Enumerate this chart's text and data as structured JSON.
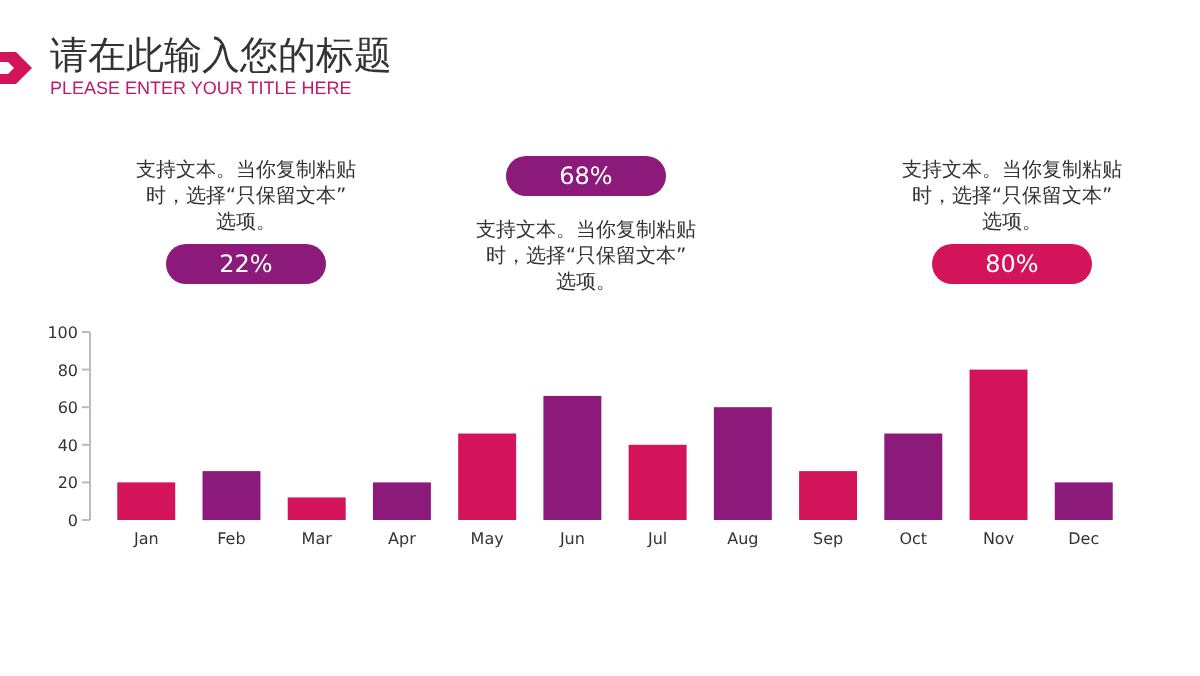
{
  "chart_data": {
    "type": "bar",
    "title": "请在此输入您的标题",
    "subtitle": "PLEASE ENTER YOUR TITLE HERE",
    "categories": [
      "Jan",
      "Feb",
      "Mar",
      "Apr",
      "May",
      "Jun",
      "Jul",
      "Aug",
      "Sep",
      "Oct",
      "Nov",
      "Dec"
    ],
    "values": [
      20,
      26,
      12,
      20,
      46,
      66,
      40,
      60,
      26,
      46,
      80,
      20
    ],
    "colors": [
      "#d4145a",
      "#8b1a7a",
      "#d4145a",
      "#8b1a7a",
      "#d4145a",
      "#8b1a7a",
      "#d4145a",
      "#8b1a7a",
      "#d4145a",
      "#8b1a7a",
      "#d4145a",
      "#8b1a7a"
    ],
    "ylim": [
      0,
      100
    ],
    "yticks": [
      0,
      20,
      40,
      60,
      80,
      100
    ],
    "grid": false,
    "annotations": [
      "支持文本。当你复制粘贴时，选择“只保留文本”选项。",
      "22%",
      "68%",
      "支持文本。当你复制粘贴时，选择“只保留文本”选项。",
      "支持文本。当你复制粘贴时，选择“只保留文本”选项。",
      "80%"
    ]
  }
}
